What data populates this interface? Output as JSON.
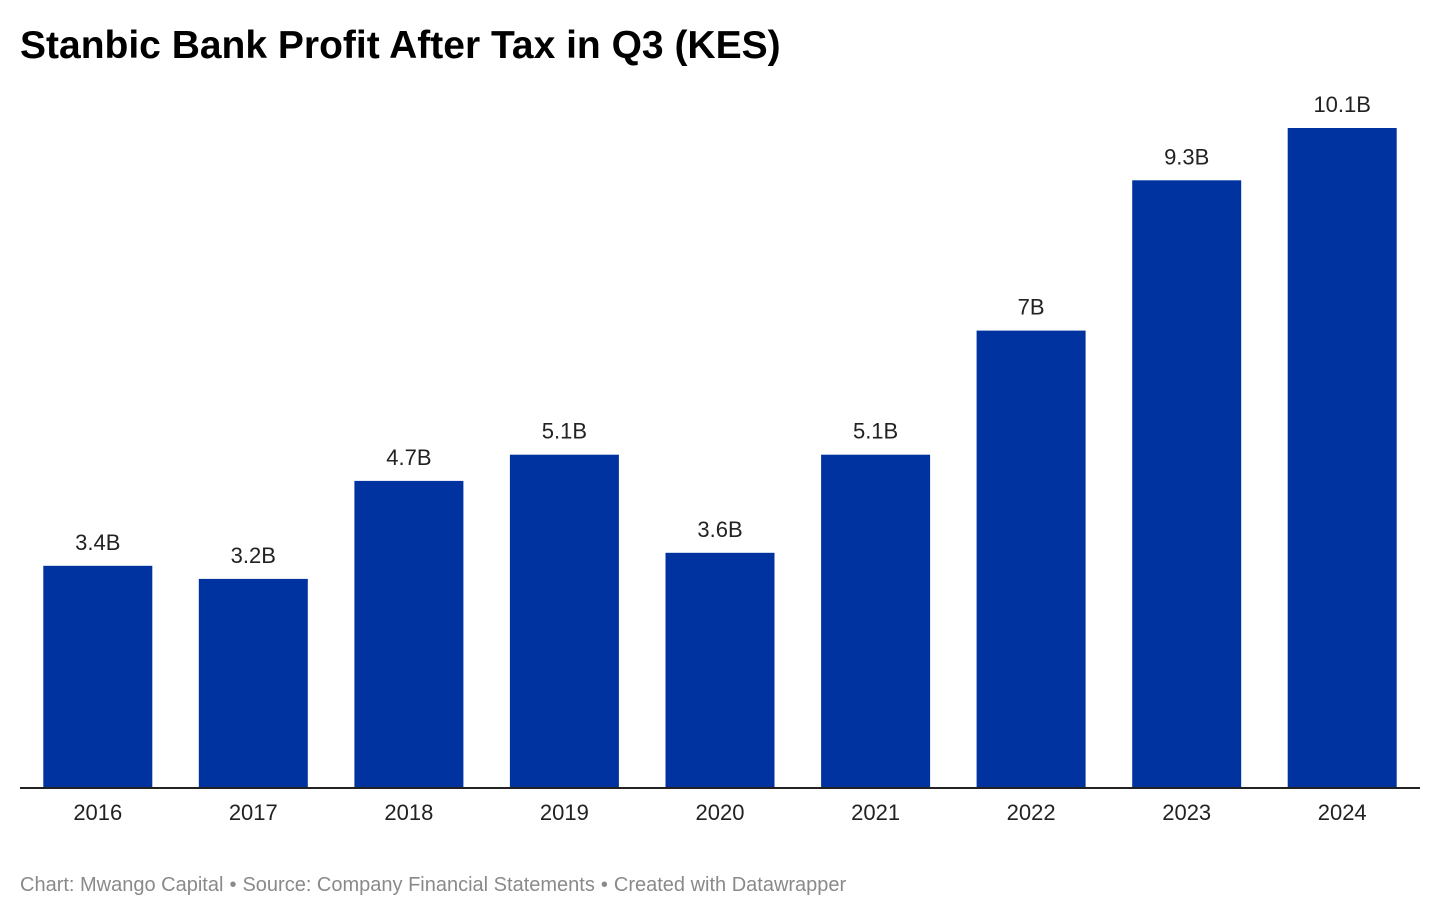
{
  "title": "Stanbic Bank Profit After Tax in Q3 (KES)",
  "footer": {
    "credit": "Chart: Mwango Capital",
    "source": "Source: Company Financial Statements",
    "created": "Created with Datawrapper",
    "separator": "•"
  },
  "colors": {
    "bar": "#0033a0",
    "axis": "#222222",
    "text": "#222222",
    "footer_text": "#8a8a8a"
  },
  "chart_data": {
    "type": "bar",
    "title": "Stanbic Bank Profit After Tax in Q3 (KES)",
    "xlabel": "",
    "ylabel": "",
    "categories": [
      "2016",
      "2017",
      "2018",
      "2019",
      "2020",
      "2021",
      "2022",
      "2023",
      "2024"
    ],
    "values": [
      3.4,
      3.2,
      4.7,
      5.1,
      3.6,
      5.1,
      7.0,
      9.3,
      10.1
    ],
    "value_labels": [
      "3.4B",
      "3.2B",
      "4.7B",
      "5.1B",
      "3.6B",
      "5.1B",
      "7B",
      "9.3B",
      "10.1B"
    ],
    "unit": "B",
    "ylim": [
      0,
      10.1
    ],
    "grid": false,
    "legend": "none"
  }
}
